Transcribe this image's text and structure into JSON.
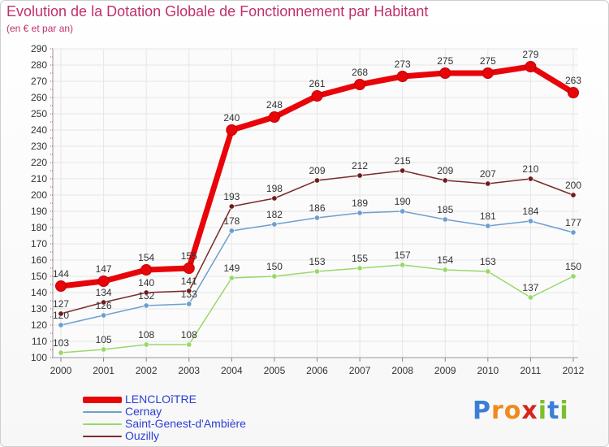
{
  "title": "Evolution de la Dotation Globale de Fonctionnement par Habitant",
  "subtitle": "(en € et par an)",
  "brand": {
    "letters": [
      "P",
      "r",
      "o",
      "x",
      "i",
      "t",
      "i"
    ],
    "colors": [
      "#3a7fd5",
      "#f08a1c",
      "#f08a1c",
      "#d4271d",
      "#7bbf2a",
      "#3a7fd5",
      "#7bbf2a"
    ]
  },
  "chart_data": {
    "type": "line",
    "title": "Evolution de la Dotation Globale de Fonctionnement par Habitant",
    "ylabel": "(en € et par an)",
    "xlabel": "",
    "categories": [
      "2000",
      "2001",
      "2002",
      "2003",
      "2004",
      "2005",
      "2006",
      "2007",
      "2008",
      "2009",
      "2010",
      "2011",
      "2012"
    ],
    "ylim": [
      100,
      290
    ],
    "yticks": [
      100,
      110,
      120,
      130,
      140,
      150,
      160,
      170,
      180,
      190,
      200,
      210,
      220,
      230,
      240,
      250,
      260,
      270,
      280,
      290
    ],
    "grid": true,
    "legend_position": "bottom-left",
    "series": [
      {
        "name": "LENCLOîTRE",
        "color": "#e8050a",
        "values": [
          144,
          147,
          154,
          155,
          240,
          248,
          261,
          268,
          273,
          275,
          275,
          279,
          263
        ]
      },
      {
        "name": "Cernay",
        "color": "#6d9fcf",
        "values": [
          120,
          126,
          132,
          133,
          178,
          182,
          186,
          189,
          190,
          185,
          181,
          184,
          177
        ]
      },
      {
        "name": "Saint-Genest-d'Ambière",
        "color": "#9ad86a",
        "values": [
          103,
          105,
          108,
          108,
          149,
          150,
          153,
          155,
          157,
          154,
          153,
          137,
          150
        ]
      },
      {
        "name": "Ouzilly",
        "color": "#7b2b2b",
        "values": [
          127,
          134,
          140,
          141,
          193,
          198,
          209,
          212,
          215,
          209,
          207,
          210,
          200
        ]
      }
    ]
  }
}
